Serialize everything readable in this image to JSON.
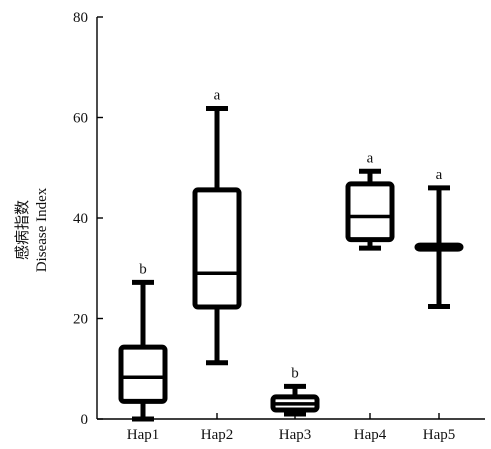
{
  "chart_data": {
    "type": "box",
    "ylabel_cn": "感病指数",
    "ylabel_en": "Disease Index",
    "xlabel": "",
    "ylim": [
      0,
      80
    ],
    "yticks": [
      "0",
      "20",
      "40",
      "60",
      "80"
    ],
    "grid": false,
    "categories": [
      "Hap1",
      "Hap2",
      "Hap3",
      "Hap4",
      "Hap5"
    ],
    "boxes": [
      {
        "category": "Hap1",
        "min": 0,
        "q1": 3.5,
        "median": 8.3,
        "q3": 14.3,
        "max": 27.2,
        "sig": "b"
      },
      {
        "category": "Hap2",
        "min": 11.2,
        "q1": 22.3,
        "median": 29,
        "q3": 45.6,
        "max": 61.8,
        "sig": "a"
      },
      {
        "category": "Hap3",
        "min": 1,
        "q1": 1.8,
        "median": 3,
        "q3": 4.4,
        "max": 6.5,
        "sig": "b"
      },
      {
        "category": "Hap4",
        "min": 34,
        "q1": 35.7,
        "median": 40.3,
        "q3": 46.8,
        "max": 49.3,
        "sig": "a"
      },
      {
        "category": "Hap5",
        "min": 22.4,
        "q1": 33.8,
        "median": 34.2,
        "q3": 34.6,
        "max": 46,
        "sig": "a"
      }
    ],
    "colors": {
      "stroke": "#000000",
      "background": "#ffffff"
    }
  }
}
